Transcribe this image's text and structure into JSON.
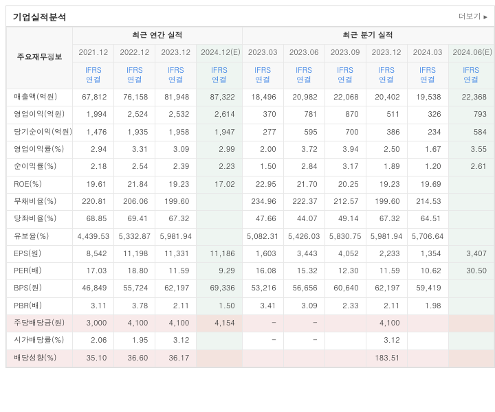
{
  "title": "기업실적분석",
  "more_label": "더보기",
  "group_annual": "최근 연간 실적",
  "group_quarter": "최근 분기 실적",
  "rowhead_label": "주요재무정보",
  "ifrs_label": "IFRS\n연결",
  "dates_annual": [
    "2021.12",
    "2022.12",
    "2023.12",
    "2024.12(E)"
  ],
  "dates_quarter": [
    "2023.03",
    "2023.06",
    "2023.09",
    "2023.12",
    "2024.03",
    "2024.06(E)"
  ],
  "est_annual_idx": 3,
  "est_quarter_idx": 5,
  "rows": [
    {
      "label": "매출액(억원)",
      "a": [
        "67,812",
        "76,158",
        "81,948",
        "87,322"
      ],
      "q": [
        "18,496",
        "20,982",
        "22,068",
        "20,402",
        "19,538",
        "22,368"
      ]
    },
    {
      "label": "영업이익(억원)",
      "a": [
        "1,994",
        "2,524",
        "2,532",
        "2,614"
      ],
      "q": [
        "370",
        "781",
        "870",
        "511",
        "326",
        "793"
      ]
    },
    {
      "label": "당기순이익(억원)",
      "a": [
        "1,476",
        "1,935",
        "1,958",
        "1,947"
      ],
      "q": [
        "277",
        "595",
        "700",
        "386",
        "234",
        "584"
      ]
    },
    {
      "label": "영업이익률(%)",
      "a": [
        "2.94",
        "3.31",
        "3.09",
        "2.99"
      ],
      "q": [
        "2.00",
        "3.72",
        "3.94",
        "2.50",
        "1.67",
        "3.55"
      ]
    },
    {
      "label": "순이익률(%)",
      "a": [
        "2.18",
        "2.54",
        "2.39",
        "2.23"
      ],
      "q": [
        "1.50",
        "2.84",
        "3.17",
        "1.89",
        "1.20",
        "2.61"
      ]
    },
    {
      "label": "ROE(%)",
      "a": [
        "19.61",
        "21.84",
        "19.23",
        "17.02"
      ],
      "q": [
        "22.95",
        "21.70",
        "20.25",
        "19.23",
        "19.69",
        ""
      ]
    },
    {
      "label": "부채비율(%)",
      "a": [
        "220.81",
        "206.06",
        "199.60",
        ""
      ],
      "q": [
        "234.96",
        "222.37",
        "212.57",
        "199.60",
        "214.53",
        ""
      ]
    },
    {
      "label": "당좌비율(%)",
      "a": [
        "68.85",
        "69.41",
        "67.32",
        ""
      ],
      "q": [
        "47.66",
        "44.07",
        "49.14",
        "67.32",
        "64.51",
        ""
      ]
    },
    {
      "label": "유보율(%)",
      "a": [
        "4,439.53",
        "5,332.87",
        "5,981.94",
        ""
      ],
      "q": [
        "5,082.31",
        "5,426.03",
        "5,830.75",
        "5,981.94",
        "5,706.64",
        ""
      ]
    },
    {
      "label": "EPS(원)",
      "a": [
        "8,542",
        "11,198",
        "11,331",
        "11,186"
      ],
      "q": [
        "1,603",
        "3,443",
        "4,052",
        "2,233",
        "1,354",
        "3,407"
      ]
    },
    {
      "label": "PER(배)",
      "a": [
        "17.03",
        "18.80",
        "11.59",
        "9.29"
      ],
      "q": [
        "16.08",
        "15.32",
        "12.30",
        "11.59",
        "10.62",
        "30.50"
      ]
    },
    {
      "label": "BPS(원)",
      "a": [
        "46,849",
        "55,724",
        "62,197",
        "69,336"
      ],
      "q": [
        "53,216",
        "56,656",
        "60,640",
        "62,197",
        "59,419",
        ""
      ]
    },
    {
      "label": "PBR(배)",
      "a": [
        "3.11",
        "3.78",
        "2.11",
        "1.50"
      ],
      "q": [
        "3.41",
        "3.09",
        "2.33",
        "2.11",
        "1.98",
        ""
      ]
    },
    {
      "label": "주당배당금(원)",
      "a": [
        "3,000",
        "4,100",
        "4,100",
        "4,154"
      ],
      "q": [
        "-",
        "-",
        "",
        "4,100",
        "",
        ""
      ],
      "hl": true
    },
    {
      "label": "시가배당률(%)",
      "a": [
        "2.06",
        "1.95",
        "3.12",
        ""
      ],
      "q": [
        "-",
        "-",
        "",
        "3.12",
        "",
        ""
      ]
    },
    {
      "label": "배당성향(%)",
      "a": [
        "35.10",
        "36.60",
        "36.17",
        ""
      ],
      "q": [
        "",
        "",
        "",
        "183.51",
        "",
        ""
      ],
      "hl": true
    }
  ]
}
